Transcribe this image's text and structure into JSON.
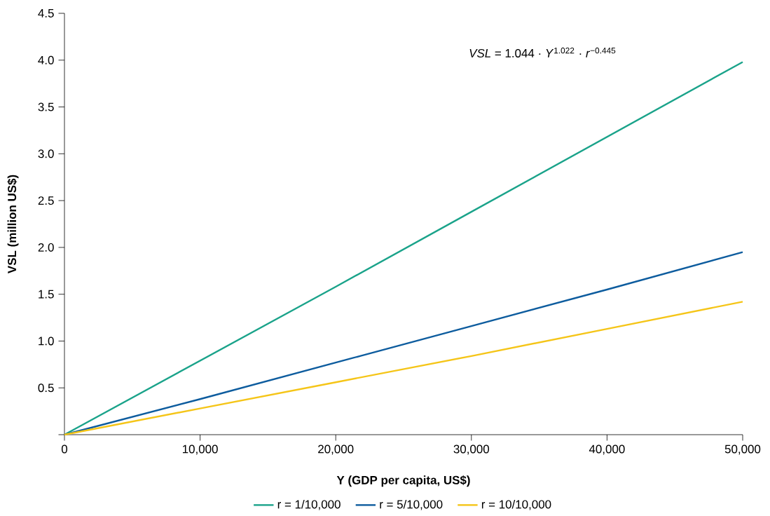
{
  "chart_data": {
    "type": "line",
    "xlabel": "Y (GDP per capita, US$)",
    "ylabel": "VSL (million US$)",
    "annotations": [
      "*VSL* = 1.044 · *Y*$^{1.022}$ · *r*$^{−0.445}$"
    ],
    "x": [
      0,
      10000,
      20000,
      30000,
      40000,
      50000
    ],
    "xlim": [
      0,
      50000
    ],
    "xticks": [
      0,
      {
        "value": 10000,
        "label": "10,000"
      },
      {
        "value": 20000,
        "label": "20,000"
      },
      {
        "value": 30000,
        "label": "30,000"
      },
      {
        "value": 40000,
        "label": "40,000"
      },
      {
        "value": 50000,
        "label": "50,000"
      }
    ],
    "ylim": [
      0,
      4.5
    ],
    "yticks": [
      {
        "value": 0,
        "label": null
      },
      0.5,
      {
        "value": 1,
        "label": "1.0"
      },
      1.5,
      {
        "value": 2,
        "label": "2.0"
      },
      2.5,
      {
        "value": 3,
        "label": "3.0"
      },
      3.5,
      {
        "value": 4,
        "label": "4.0"
      },
      4.5
    ],
    "series": [
      {
        "name": "r = 1/10,000",
        "color": "#1aa38a",
        "values": [
          0,
          0.79,
          1.58,
          2.38,
          3.18,
          3.98
        ]
      },
      {
        "name": "r = 5/10,000",
        "color": "#0d5c9e",
        "values": [
          0,
          0.38,
          0.77,
          1.16,
          1.55,
          1.95
        ]
      },
      {
        "name": "r = 10/10,000",
        "color": "#f5c518",
        "values": [
          0,
          0.28,
          0.56,
          0.84,
          1.13,
          1.42
        ]
      }
    ],
    "legend": "bottom",
    "line_style": "solid"
  }
}
